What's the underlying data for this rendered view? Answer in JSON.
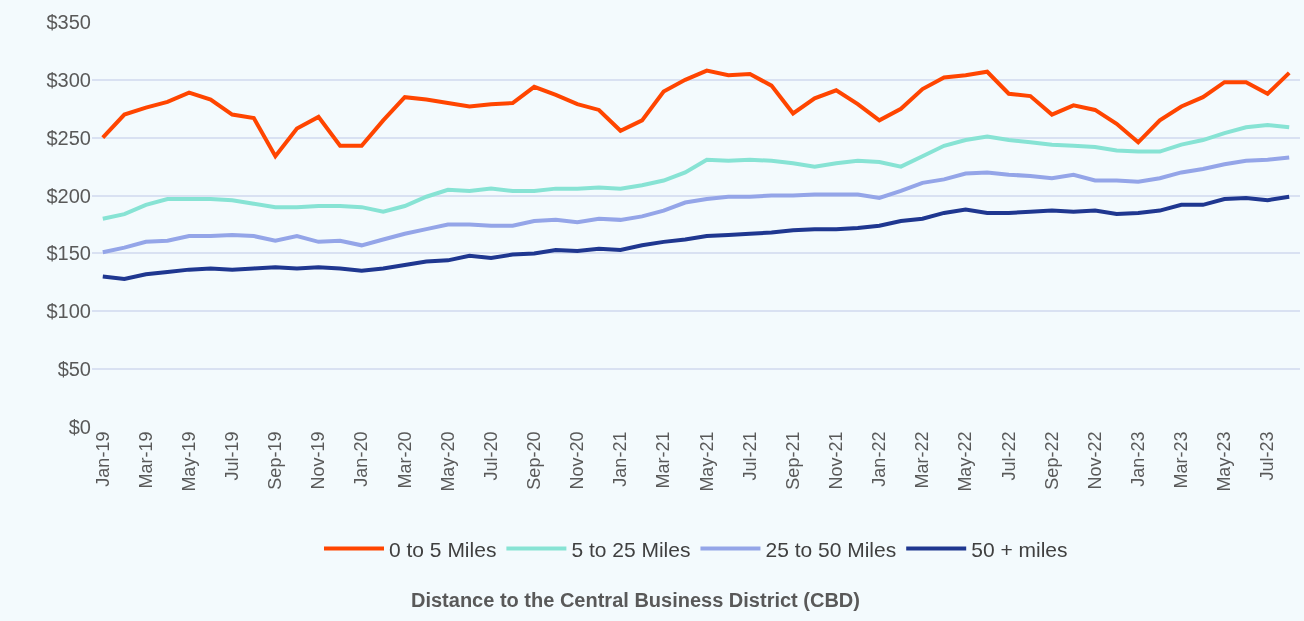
{
  "chart_data": {
    "type": "line",
    "legend_title": "Distance to the Central Business District (CBD)",
    "categories": [
      "Jan-19",
      null,
      "Mar-19",
      null,
      "May-19",
      null,
      "Jul-19",
      null,
      "Sep-19",
      null,
      "Nov-19",
      null,
      "Jan-20",
      null,
      "Mar-20",
      null,
      "May-20",
      null,
      "Jul-20",
      null,
      "Sep-20",
      null,
      "Nov-20",
      null,
      "Jan-21",
      null,
      "Mar-21",
      null,
      "May-21",
      null,
      "Jul-21",
      null,
      "Sep-21",
      null,
      "Nov-21",
      null,
      "Jan-22",
      null,
      "Mar-22",
      null,
      "May-22",
      null,
      "Jul-22",
      null,
      "Sep-22",
      null,
      "Nov-22",
      null,
      "Jan-23",
      null,
      "Mar-23",
      null,
      "May-23",
      null,
      "Jul-23",
      null
    ],
    "series": [
      {
        "name": "0 to 5 Miles",
        "color": "#ff4500",
        "values": [
          250,
          270,
          276,
          281,
          289,
          283,
          270,
          267,
          234,
          258,
          268,
          243,
          243,
          265,
          285,
          283,
          280,
          277,
          279,
          280,
          294,
          287,
          279,
          274,
          256,
          265,
          290,
          300,
          308,
          304,
          305,
          295,
          271,
          284,
          291,
          279,
          265,
          275,
          292,
          302,
          304,
          307,
          288,
          286,
          270,
          278,
          274,
          262,
          246,
          265,
          277,
          285,
          298,
          298,
          288,
          306
        ]
      },
      {
        "name": "5 to 25 Miles",
        "color": "#87e3d4",
        "values": [
          180,
          184,
          192,
          197,
          197,
          197,
          196,
          193,
          190,
          190,
          191,
          191,
          190,
          186,
          191,
          199,
          205,
          204,
          206,
          204,
          204,
          206,
          206,
          207,
          206,
          209,
          213,
          220,
          231,
          230,
          231,
          230,
          228,
          225,
          228,
          230,
          229,
          225,
          234,
          243,
          248,
          251,
          248,
          246,
          244,
          243,
          242,
          239,
          238,
          238,
          244,
          248,
          254,
          259,
          261,
          259
        ]
      },
      {
        "name": "25 to 50 Miles",
        "color": "#94a5e8",
        "values": [
          151,
          155,
          160,
          161,
          165,
          165,
          166,
          165,
          161,
          165,
          160,
          161,
          157,
          162,
          167,
          171,
          175,
          175,
          174,
          174,
          178,
          179,
          177,
          180,
          179,
          182,
          187,
          194,
          197,
          199,
          199,
          200,
          200,
          201,
          201,
          201,
          198,
          204,
          211,
          214,
          219,
          220,
          218,
          217,
          215,
          218,
          213,
          213,
          212,
          215,
          220,
          223,
          227,
          230,
          231,
          233
        ]
      },
      {
        "name": "50 + miles",
        "color": "#1f3790",
        "values": [
          130,
          128,
          132,
          134,
          136,
          137,
          136,
          137,
          138,
          137,
          138,
          137,
          135,
          137,
          140,
          143,
          144,
          148,
          146,
          149,
          150,
          153,
          152,
          154,
          153,
          157,
          160,
          162,
          165,
          166,
          167,
          168,
          170,
          171,
          171,
          172,
          174,
          178,
          180,
          185,
          188,
          185,
          185,
          186,
          187,
          186,
          187,
          184,
          185,
          187,
          192,
          192,
          197,
          198,
          196,
          199
        ]
      }
    ],
    "ylim": [
      0,
      350
    ],
    "yticks": [
      {
        "value": 0,
        "label": "$0"
      },
      {
        "value": 50,
        "label": "$50"
      },
      {
        "value": 100,
        "label": "$100"
      },
      {
        "value": 150,
        "label": "$150"
      },
      {
        "value": 200,
        "label": "$200"
      },
      {
        "value": 250,
        "label": "$250"
      },
      {
        "value": 300,
        "label": "$300"
      },
      {
        "value": 350,
        "label": "$350"
      }
    ],
    "grid": "y",
    "legend": "bottom",
    "marker": "none",
    "line_style": "solid"
  }
}
